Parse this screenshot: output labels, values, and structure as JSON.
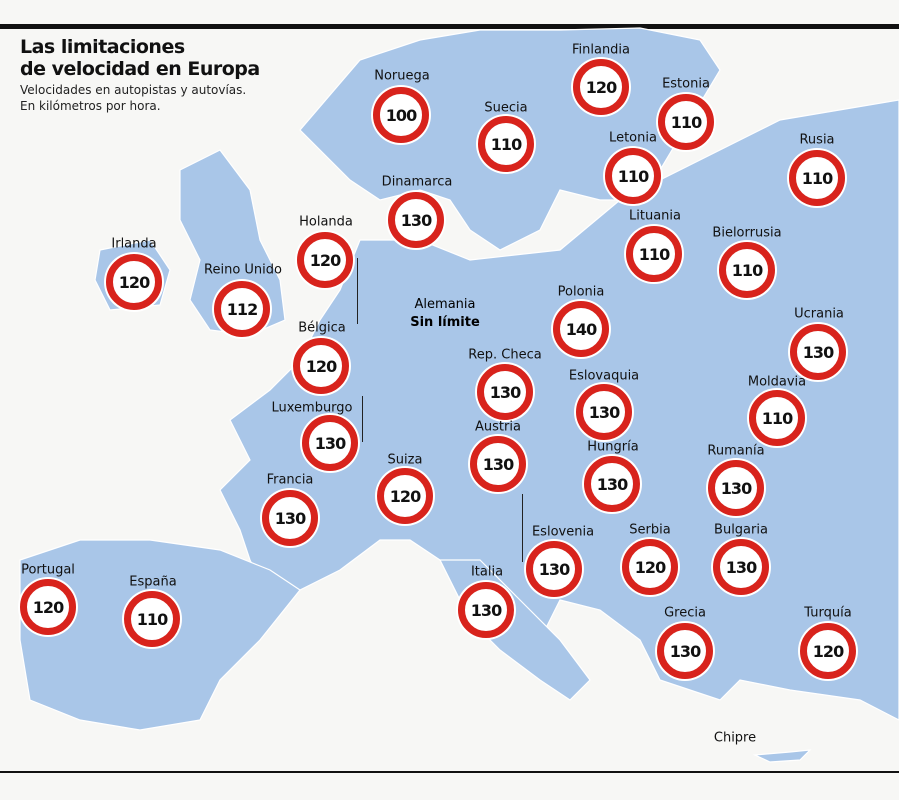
{
  "title_line1": "Las limitaciones",
  "title_line2": "de velocidad en Europa",
  "subtitle_line1": "Velocidades en autopistas y autovías.",
  "subtitle_line2": "En kilómetros por hora.",
  "countries": [
    {
      "name": "Noruega",
      "limit": "100"
    },
    {
      "name": "Finlandia",
      "limit": "120"
    },
    {
      "name": "Estonia",
      "limit": "110"
    },
    {
      "name": "Suecia",
      "limit": "110"
    },
    {
      "name": "Letonia",
      "limit": "110"
    },
    {
      "name": "Rusia",
      "limit": "110"
    },
    {
      "name": "Dinamarca",
      "limit": "130"
    },
    {
      "name": "Lituania",
      "limit": "110"
    },
    {
      "name": "Bielorrusia",
      "limit": "110"
    },
    {
      "name": "Holanda",
      "limit": "120"
    },
    {
      "name": "Irlanda",
      "limit": "120"
    },
    {
      "name": "Reino Unido",
      "limit": "112"
    },
    {
      "name": "Polonia",
      "limit": "140"
    },
    {
      "name": "Ucrania",
      "limit": "130"
    },
    {
      "name": "Bélgica",
      "limit": "120"
    },
    {
      "name": "Rep. Checa",
      "limit": "130"
    },
    {
      "name": "Eslovaquia",
      "limit": "130"
    },
    {
      "name": "Moldavia",
      "limit": "110"
    },
    {
      "name": "Luxemburgo",
      "limit": "130"
    },
    {
      "name": "Austria",
      "limit": "130"
    },
    {
      "name": "Hungría",
      "limit": "130"
    },
    {
      "name": "Rumanía",
      "limit": "130"
    },
    {
      "name": "Suiza",
      "limit": "120"
    },
    {
      "name": "Francia",
      "limit": "130"
    },
    {
      "name": "Eslovenia",
      "limit": "130"
    },
    {
      "name": "Serbia",
      "limit": "120"
    },
    {
      "name": "Bulgaria",
      "limit": "130"
    },
    {
      "name": "Italia",
      "limit": "130"
    },
    {
      "name": "Portugal",
      "limit": "120"
    },
    {
      "name": "España",
      "limit": "110"
    },
    {
      "name": "Grecia",
      "limit": "130"
    },
    {
      "name": "Turquía",
      "limit": "120"
    }
  ],
  "germany": {
    "name": "Alemania",
    "limit": "Sin límite"
  },
  "cyprus": {
    "name": "Chipre"
  },
  "colors": {
    "land": "#a9c6e8",
    "sign_ring": "#d8231c"
  }
}
